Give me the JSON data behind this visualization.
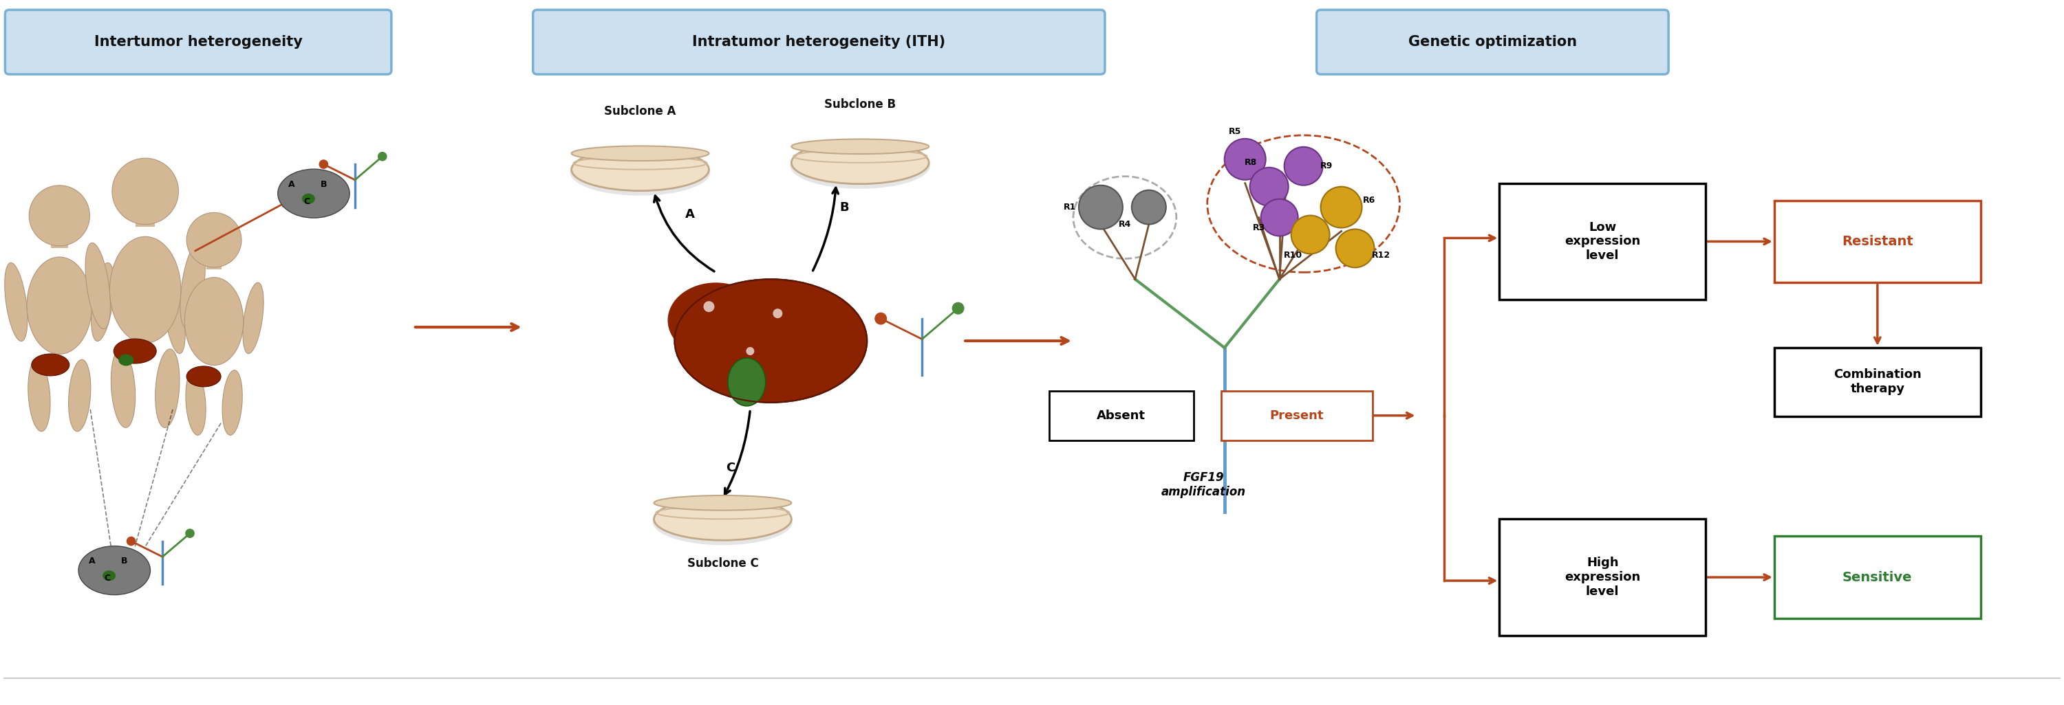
{
  "bg_color": "#ffffff",
  "header_bg_top": "#cce0f0",
  "header_bg_bot": "#e8f4fc",
  "header_border": "#7ab0d4",
  "header_texts": [
    "Intertumor heterogeneity",
    "Intratumor heterogeneity (ITH)",
    "Genetic optimization"
  ],
  "arrow_color": "#b5451b",
  "text_dark": "#111111",
  "orange_color": "#b5451b",
  "green_color": "#2e7d32",
  "skin_color": "#d4b896",
  "skin_edge": "#b0957a",
  "liver_color": "#8B2200",
  "liver_edge": "#5a1400",
  "gray_clone": "#808080",
  "purple_clone": "#9b59b6",
  "yellow_clone": "#d4a017",
  "subclone_labels": [
    "Subclone A",
    "Subclone B",
    "Subclone C"
  ],
  "fgf19_text": "FGF19\namplification",
  "absent_text": "Absent",
  "present_text": "Present",
  "low_expression": "Low\nexpression\nlevel",
  "high_expression": "High\nexpression\nlevel",
  "resistant_text": "Resistant",
  "sensitive_text": "Sensitive",
  "combo_text": "Combination\ntherapy",
  "tree_branch_color": "#7a5030",
  "tree_trunk_color": "#5a8a5a",
  "dashed_gray": "#aaaaaa",
  "dashed_orange": "#b5451b"
}
